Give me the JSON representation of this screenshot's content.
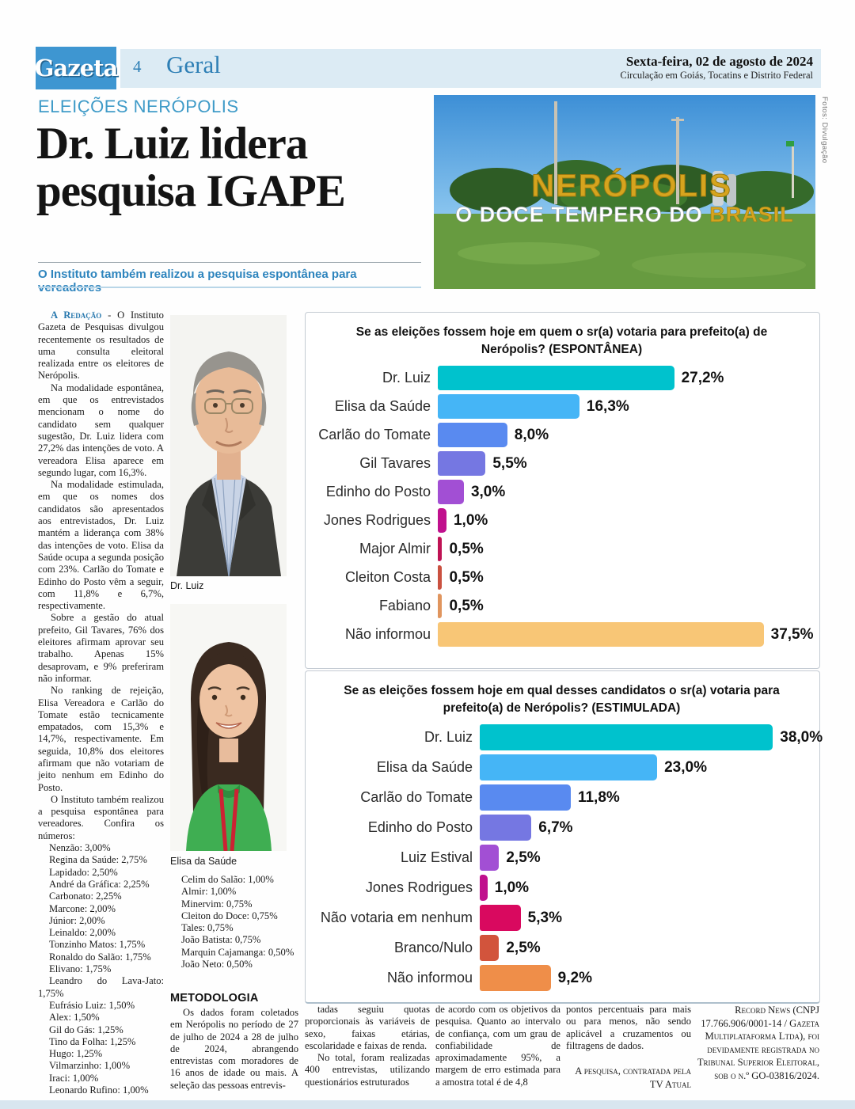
{
  "masthead": {
    "logo": "Gazeta",
    "page_number": "4",
    "section": "Geral",
    "date": "Sexta-feira, 02 de agosto de 2024",
    "circulation": "Circulação em Goiás, Tocatins e Distrito Federal",
    "brand_blue": "#3e96d1",
    "band_bg": "#dcebf4",
    "accent_text": "#2e7fb5"
  },
  "article": {
    "kicker": "ELEIÇÕES NERÓPOLIS",
    "headline": "Dr. Luiz lidera pesquisa IGAPE",
    "subhead": "O Instituto também realizou a pesquisa espontânea para vereadores",
    "byline": "A Redação",
    "p1": "- O Instituto Gazeta de Pesquisas divulgou recentemente os resultados de uma consulta eleitoral realizada entre os eleitores de Nerópolis.",
    "p2": "Na modalidade espontânea, em que os entrevistados mencionam o nome do candidato sem qualquer sugestão, Dr. Luiz lidera com 27,2% das intenções de voto. A vereadora Elisa aparece em segundo lugar, com 16,3%.",
    "p3": "Na modalidade estimulada, em que os nomes dos candidatos são apresentados aos entrevistados, Dr. Luiz mantém a liderança com 38% das intenções de voto. Elisa da Saúde ocupa a segunda posição com 23%. Carlão do Tomate e Edinho do Posto vêm a seguir, com 11,8% e 6,7%, respectivamente.",
    "p4": "Sobre a gestão do atual prefeito, Gil Tavares, 76% dos eleitores afirmam aprovar seu trabalho. Apenas 15% desaprovam, e 9% preferiram não informar.",
    "p5": "No ranking de rejeição, Elisa Vereadora e Carlão do Tomate estão tecnicamente empatados, com 15,3% e 14,7%, respectivamente. Em seguida, 10,8% dos eleitores afirmam que não votariam de jeito nenhum em Edinho do Posto.",
    "p6": "O Instituto também realizou a pesquisa espontânea para vereadores. Confira os números:",
    "vereadores_list1": [
      "Nenzão: 3,00%",
      "Regina da Saúde: 2,75%",
      "Lapidado: 2,50%",
      "André da Gráfica: 2,25%",
      "Carbonato: 2,25%",
      "Marcone: 2,00%",
      "Júnior: 2,00%",
      "Leinaldo: 2,00%",
      "Tonzinho Matos: 1,75%",
      "Ronaldo do Salão: 1,75%",
      "Elivano: 1,75%",
      "Leandro do Lava-Jato: 1,75%",
      "Eufrásio Luiz: 1,50%",
      "Alex: 1,50%",
      "Gil do Gás: 1,25%",
      "Tino da Folha: 1,25%",
      "Hugo: 1,25%",
      "Vilmarzinho: 1,00%",
      "Iraci: 1,00%",
      "Leonardo Rufino: 1,00%"
    ],
    "vereadores_list2": [
      "Celim do Salão: 1,00%",
      "Almir: 1,00%",
      "Minervim: 0,75%",
      "Cleiton do Doce: 0,75%",
      "Tales: 0,75%",
      "João Batista: 0,75%",
      "Marquin Cajamanga: 0,50%",
      "João Neto: 0,50%"
    ]
  },
  "methodology": {
    "heading": "METODOLOGIA",
    "p1": "Os dados foram coletados em Nerópolis no período de 27 de julho de 2024 a 28 de julho de 2024, abrangendo entrevistas com moradores de 16 anos de idade ou mais. A seleção das pessoas entrevis-",
    "p2": "tadas seguiu quotas proporcionais às variáveis de sexo, faixas etárias, escolaridade e faixas de renda.",
    "p3": "No total, foram realizadas 400 entrevistas, utilizando questionários estruturados",
    "p4": "de acordo com os objetivos da pesquisa. Quanto ao intervalo de confiança, com um grau de confiabilidade de aproximadamente 95%, a margem de erro estimada para a amostra total é de 4,8",
    "p5": "pontos percentuais para mais ou para menos, não sendo aplicável a cruzamentos ou filtragens de dados.",
    "signoff": "A pesquisa, contratada pela TV Atual",
    "registration": "Record News (CNPJ 17.766.906/0001-14 / Gazeta Multiplataforma Ltda), foi devidamente registrada no Tribunal Superior Eleitoral, sob o n.º GO-03816/2024."
  },
  "photos": {
    "credit": "Fotos: Divulgação",
    "sign_top": "NERÓPOLIS",
    "sign_bottom_white": "O DOCE TEMPERO DO ",
    "sign_bottom_gold": "BRASIL",
    "dr_luiz_caption": "Dr. Luiz",
    "elisa_caption": "Elisa da Saúde"
  },
  "chart_data": [
    {
      "type": "bar",
      "orientation": "horizontal",
      "title": "Se as eleições fossem hoje em quem o sr(a) votaria para prefeito(a) de Nerópolis? (ESPONTÂNEA)",
      "categories": [
        "Dr. Luiz",
        "Elisa da Saúde",
        "Carlão do Tomate",
        "Gil Tavares",
        "Edinho do Posto",
        "Jones Rodrigues",
        "Major Almir",
        "Cleiton Costa",
        "Fabiano",
        "Não informou"
      ],
      "values": [
        27.2,
        16.3,
        8.0,
        5.5,
        3.0,
        1.0,
        0.5,
        0.5,
        0.5,
        37.5
      ],
      "value_labels": [
        "27,2%",
        "16,3%",
        "8,0%",
        "5,5%",
        "3,0%",
        "1,0%",
        "0,5%",
        "0,5%",
        "0,5%",
        "37,5%"
      ],
      "colors": [
        "#00c2cd",
        "#45b5f6",
        "#598af0",
        "#7577e2",
        "#a24fd4",
        "#c0108d",
        "#bf1254",
        "#ca5140",
        "#e0955e",
        "#f8c676"
      ],
      "xlim": [
        0,
        43
      ],
      "grid": false,
      "legend": false
    },
    {
      "type": "bar",
      "orientation": "horizontal",
      "title": "Se as eleições fossem hoje em qual desses candidatos o sr(a) votaria para prefeito(a) de Nerópolis? (ESTIMULADA)",
      "categories": [
        "Dr. Luiz",
        "Elisa da Saúde",
        "Carlão do Tomate",
        "Edinho do Posto",
        "Luiz Estival",
        "Jones Rodrigues",
        "Não votaria em nenhum",
        "Branco/Nulo",
        "Não informou"
      ],
      "values": [
        38.0,
        23.0,
        11.8,
        6.7,
        2.5,
        1.0,
        5.3,
        2.5,
        9.2
      ],
      "value_labels": [
        "38,0%",
        "23,0%",
        "11,8%",
        "6,7%",
        "2,5%",
        "1,0%",
        "5,3%",
        "2,5%",
        "9,2%"
      ],
      "colors": [
        "#00c2cd",
        "#45b5f6",
        "#598af0",
        "#7577e2",
        "#a24fd4",
        "#c0108d",
        "#d9095f",
        "#d2543c",
        "#ef8e49"
      ],
      "xlim": [
        0,
        43
      ],
      "grid": false,
      "legend": false
    }
  ]
}
